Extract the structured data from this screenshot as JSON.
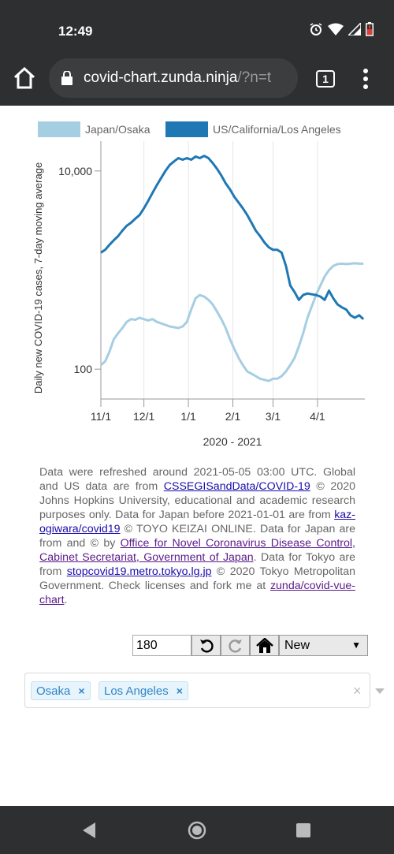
{
  "status_bar": {
    "time": "12:49"
  },
  "browser": {
    "url_main": "covid-chart.zunda.ninja",
    "url_rest": "/?n=t",
    "tab_count": "1"
  },
  "chart_data": {
    "type": "line",
    "series": [
      {
        "name": "Japan/Osaka",
        "color": "#a6cee3",
        "points": [
          [
            "2020-11-01",
            110
          ],
          [
            "2020-11-04",
            120
          ],
          [
            "2020-11-07",
            150
          ],
          [
            "2020-11-10",
            200
          ],
          [
            "2020-11-13",
            230
          ],
          [
            "2020-11-16",
            260
          ],
          [
            "2020-11-19",
            300
          ],
          [
            "2020-11-22",
            320
          ],
          [
            "2020-11-25",
            315
          ],
          [
            "2020-11-28",
            330
          ],
          [
            "2020-12-01",
            320
          ],
          [
            "2020-12-04",
            310
          ],
          [
            "2020-12-07",
            320
          ],
          [
            "2020-12-10",
            300
          ],
          [
            "2020-12-13",
            290
          ],
          [
            "2020-12-16",
            280
          ],
          [
            "2020-12-19",
            270
          ],
          [
            "2020-12-22",
            265
          ],
          [
            "2020-12-25",
            260
          ],
          [
            "2020-12-28",
            270
          ],
          [
            "2020-12-31",
            300
          ],
          [
            "2021-01-03",
            400
          ],
          [
            "2021-01-06",
            520
          ],
          [
            "2021-01-09",
            560
          ],
          [
            "2021-01-12",
            540
          ],
          [
            "2021-01-15",
            500
          ],
          [
            "2021-01-18",
            450
          ],
          [
            "2021-01-21",
            380
          ],
          [
            "2021-01-24",
            320
          ],
          [
            "2021-01-27",
            260
          ],
          [
            "2021-01-30",
            200
          ],
          [
            "2021-02-02",
            160
          ],
          [
            "2021-02-05",
            130
          ],
          [
            "2021-02-08",
            110
          ],
          [
            "2021-02-11",
            95
          ],
          [
            "2021-02-14",
            90
          ],
          [
            "2021-02-17",
            85
          ],
          [
            "2021-02-20",
            80
          ],
          [
            "2021-02-23",
            78
          ],
          [
            "2021-02-26",
            76
          ],
          [
            "2021-03-01",
            80
          ],
          [
            "2021-03-04",
            80
          ],
          [
            "2021-03-07",
            85
          ],
          [
            "2021-03-10",
            95
          ],
          [
            "2021-03-13",
            110
          ],
          [
            "2021-03-16",
            130
          ],
          [
            "2021-03-19",
            170
          ],
          [
            "2021-03-22",
            230
          ],
          [
            "2021-03-25",
            330
          ],
          [
            "2021-03-28",
            430
          ],
          [
            "2021-03-31",
            560
          ],
          [
            "2021-04-03",
            700
          ],
          [
            "2021-04-06",
            860
          ],
          [
            "2021-04-09",
            1000
          ],
          [
            "2021-04-12",
            1100
          ],
          [
            "2021-04-15",
            1150
          ],
          [
            "2021-04-18",
            1160
          ],
          [
            "2021-04-21",
            1150
          ],
          [
            "2021-04-24",
            1160
          ],
          [
            "2021-04-27",
            1170
          ],
          [
            "2021-04-30",
            1160
          ],
          [
            "2021-05-03",
            1160
          ]
        ]
      },
      {
        "name": "US/California/Los Angeles",
        "color": "#1f78b4",
        "points": [
          [
            "2020-11-01",
            1500
          ],
          [
            "2020-11-04",
            1600
          ],
          [
            "2020-11-07",
            1800
          ],
          [
            "2020-11-10",
            2000
          ],
          [
            "2020-11-13",
            2200
          ],
          [
            "2020-11-16",
            2500
          ],
          [
            "2020-11-19",
            2800
          ],
          [
            "2020-11-22",
            3000
          ],
          [
            "2020-11-25",
            3300
          ],
          [
            "2020-11-28",
            3600
          ],
          [
            "2020-12-01",
            4200
          ],
          [
            "2020-12-04",
            5000
          ],
          [
            "2020-12-07",
            6000
          ],
          [
            "2020-12-10",
            7200
          ],
          [
            "2020-12-13",
            8500
          ],
          [
            "2020-12-16",
            10000
          ],
          [
            "2020-12-19",
            11500
          ],
          [
            "2020-12-22",
            12500
          ],
          [
            "2020-12-25",
            13500
          ],
          [
            "2020-12-28",
            13000
          ],
          [
            "2020-12-31",
            13500
          ],
          [
            "2021-01-03",
            13000
          ],
          [
            "2021-01-06",
            14000
          ],
          [
            "2021-01-09",
            13500
          ],
          [
            "2021-01-12",
            14200
          ],
          [
            "2021-01-15",
            13500
          ],
          [
            "2021-01-18",
            12000
          ],
          [
            "2021-01-21",
            10500
          ],
          [
            "2021-01-24",
            9000
          ],
          [
            "2021-01-27",
            7500
          ],
          [
            "2021-01-30",
            6500
          ],
          [
            "2021-02-02",
            5500
          ],
          [
            "2021-02-05",
            4800
          ],
          [
            "2021-02-08",
            4200
          ],
          [
            "2021-02-11",
            3600
          ],
          [
            "2021-02-14",
            3000
          ],
          [
            "2021-02-17",
            2500
          ],
          [
            "2021-02-20",
            2200
          ],
          [
            "2021-02-23",
            1900
          ],
          [
            "2021-02-26",
            1700
          ],
          [
            "2021-03-01",
            1600
          ],
          [
            "2021-03-04",
            1600
          ],
          [
            "2021-03-07",
            1500
          ],
          [
            "2021-03-10",
            1100
          ],
          [
            "2021-03-13",
            700
          ],
          [
            "2021-03-16",
            600
          ],
          [
            "2021-03-19",
            500
          ],
          [
            "2021-03-22",
            560
          ],
          [
            "2021-03-25",
            580
          ],
          [
            "2021-03-28",
            570
          ],
          [
            "2021-03-31",
            560
          ],
          [
            "2021-04-03",
            540
          ],
          [
            "2021-04-06",
            500
          ],
          [
            "2021-04-09",
            620
          ],
          [
            "2021-04-12",
            520
          ],
          [
            "2021-04-15",
            450
          ],
          [
            "2021-04-18",
            420
          ],
          [
            "2021-04-21",
            400
          ],
          [
            "2021-04-24",
            350
          ],
          [
            "2021-04-27",
            330
          ],
          [
            "2021-04-30",
            350
          ],
          [
            "2021-05-03",
            320
          ]
        ]
      }
    ],
    "x_ticks": [
      "11/1",
      "12/1",
      "1/1",
      "2/1",
      "3/1",
      "4/1"
    ],
    "x_tick_dates": [
      "2020-11-01",
      "2020-12-01",
      "2021-01-01",
      "2021-02-01",
      "2021-03-01",
      "2021-04-01"
    ],
    "xlabel": "2020 - 2021",
    "y_ticks": [
      "10,000",
      "100"
    ],
    "y_tick_values": [
      10000,
      100
    ],
    "ylabel": "Daily new COVID-19 cases, 7-day moving average",
    "yscale": "log",
    "xlim": [
      "2020-11-01",
      "2021-05-04"
    ],
    "ylim": [
      50,
      20000
    ],
    "legend_position": "top",
    "grid": "vertical"
  },
  "info": {
    "p1": "Data were refreshed around 2021-05-05 03:00 UTC. Global and US data are from ",
    "link1": "CSSEGISandData/COVID-19",
    "p2": " © 2020 Johns Hopkins University, educational and academic research purposes only. Data for Japan before 2021-01-01 are from ",
    "link2": "kaz-ogiwara/covid19",
    "p3": " © TOYO KEIZAI ONLINE. Data for Japan are from and © by ",
    "link3": "Office for Novel Coronavirus Disease Control, Cabinet Secretariat, Government of Japan",
    "p4": ". Data for Tokyo are from ",
    "link4": "stopcovid19.metro.tokyo.lg.jp",
    "p5": " © 2020 Tokyo Metropolitan Government. Check licenses and fork me at ",
    "link5": "zunda/covid-vue-chart",
    "p6": "."
  },
  "controls": {
    "days_value": "180",
    "mode_selected": "New"
  },
  "tags": [
    {
      "label": "Osaka",
      "remove": "×"
    },
    {
      "label": "Los Angeles",
      "remove": "×"
    }
  ],
  "tag_clear": "×"
}
